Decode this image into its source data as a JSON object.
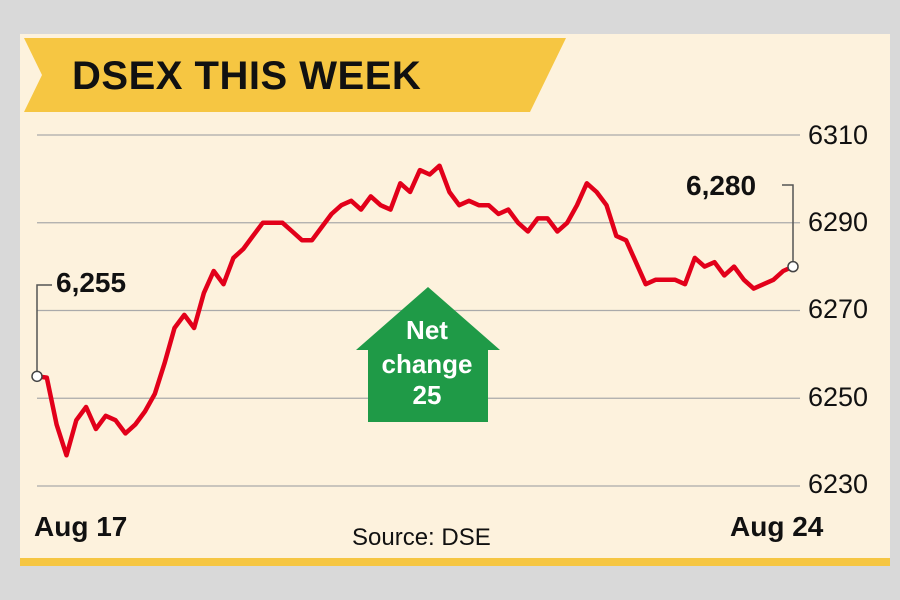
{
  "header": {
    "title": "DSEX THIS WEEK"
  },
  "footer": {
    "start_label": "Aug 17",
    "end_label": "Aug 24",
    "source": "Source: DSE"
  },
  "annotations": {
    "start_value": "6,255",
    "end_value": "6,280",
    "net_line1": "Net",
    "net_line2": "change",
    "net_line3": "25"
  },
  "colors": {
    "line": "#e2001a",
    "banner": "#f6c642",
    "arrow": "#1f9a47",
    "background": "#fdf2dd",
    "grid": "#aaaaaa"
  },
  "chart_data": {
    "type": "line",
    "title": "DSEX THIS WEEK",
    "xlabel": "",
    "ylabel": "",
    "x_labels": [
      "Aug 17",
      "Aug 24"
    ],
    "y_ticks": [
      6230,
      6250,
      6270,
      6290,
      6310
    ],
    "ylim": [
      6230,
      6310
    ],
    "grid": "horizontal",
    "series": [
      {
        "values": [
          6255,
          6254.7,
          6244,
          6237,
          6245,
          6248,
          6243,
          6246,
          6245,
          6242,
          6244,
          6247,
          6251,
          6258,
          6266,
          6269,
          6266,
          6274,
          6279,
          6276,
          6282,
          6284,
          6287,
          6290,
          6290,
          6290,
          6288,
          6286,
          6286,
          6289,
          6292,
          6294,
          6295,
          6293,
          6296,
          6294,
          6293,
          6299,
          6297,
          6302,
          6301,
          6303,
          6297,
          6294,
          6295,
          6294,
          6294,
          6292,
          6293,
          6290,
          6288,
          6291,
          6291,
          6288,
          6290,
          6294,
          6299,
          6297,
          6294,
          6287,
          6286,
          6281,
          6276,
          6277,
          6277,
          6277,
          6276,
          6282,
          6280,
          6281,
          6278,
          6280,
          6277,
          6275,
          6276,
          6277,
          6279,
          6280
        ]
      }
    ]
  }
}
